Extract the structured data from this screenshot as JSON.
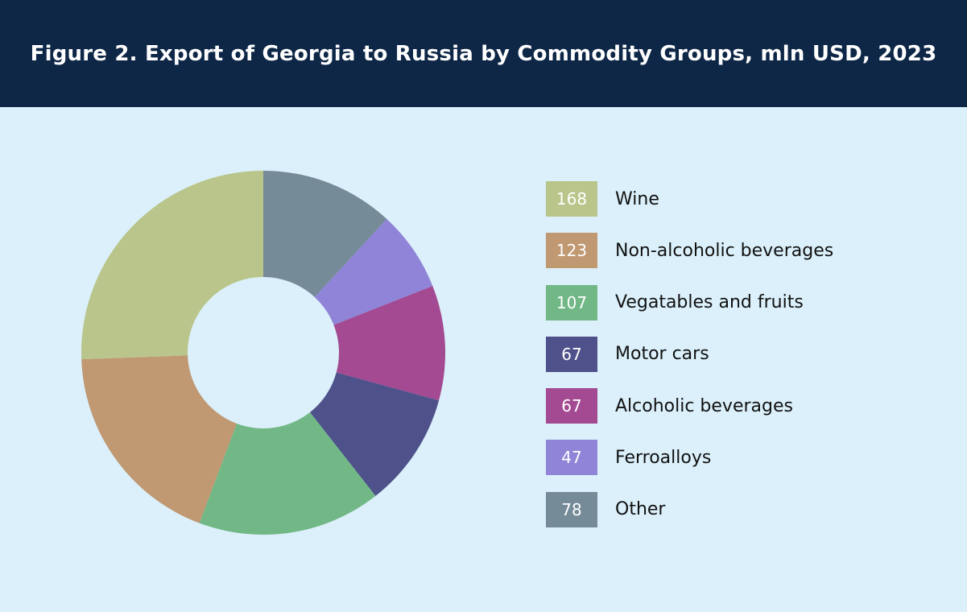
{
  "header": {
    "title": "Figure 2. Export of Georgia to Russia by Commodity Groups, mln USD, 2023"
  },
  "colors": {
    "header_bg": "#0e2747",
    "page_bg": "#dbf0fa"
  },
  "chart_data": {
    "type": "pie",
    "variant": "donut",
    "title": "Figure 2. Export of Georgia to Russia by Commodity Groups, mln USD, 2023",
    "legend_position": "right",
    "series": [
      {
        "categories": [
          "Wine",
          "Non-alcoholic beverages",
          "Vegatables and fruits",
          "Motor cars",
          "Alcoholic beverages",
          "Ferroalloys",
          "Other"
        ],
        "values": [
          168,
          123,
          107,
          67,
          67,
          47,
          78
        ],
        "colors": [
          "#b9c58a",
          "#c09872",
          "#71b886",
          "#4e518a",
          "#a34a92",
          "#8f84d8",
          "#758b98"
        ]
      }
    ]
  }
}
